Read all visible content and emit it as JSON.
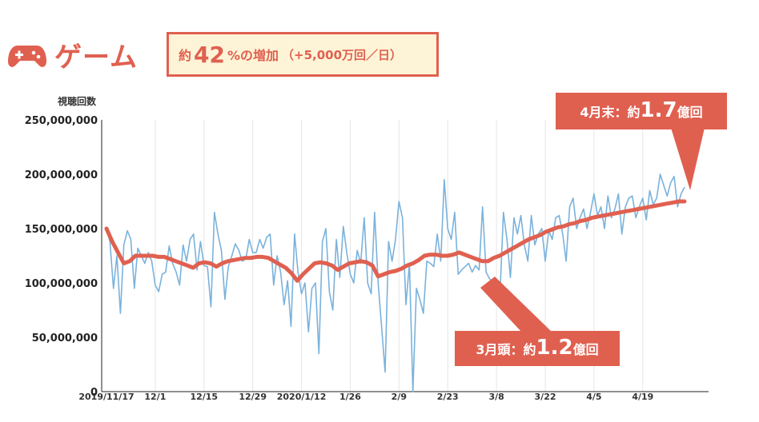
{
  "header": {
    "title": "ゲーム",
    "icon": "gamepad-icon",
    "badge": {
      "prefix": "約",
      "value": "42",
      "suffix": "%の増加",
      "note": "（+5,000万回／日）"
    }
  },
  "colors": {
    "accent": "#e06050",
    "daily_line": "#7ab2dc",
    "badge_fill": "#fdf4d7",
    "axis": "#222222",
    "grid": "#e6e6e6"
  },
  "chart_data": {
    "type": "line",
    "title": "",
    "ylabel": "視聴回数",
    "xlabel": "",
    "ylim": [
      0,
      250000000
    ],
    "yticks": [
      {
        "value": 0,
        "label": "0"
      },
      {
        "value": 50000000,
        "label": "50,000,000"
      },
      {
        "value": 100000000,
        "label": "100,000,000"
      },
      {
        "value": 150000000,
        "label": "150,000,000"
      },
      {
        "value": 200000000,
        "label": "200,000,000"
      },
      {
        "value": 250000000,
        "label": "250,000,000"
      }
    ],
    "xticks": [
      "2019/11/17",
      "12/1",
      "12/15",
      "12/29",
      "2020/1/12",
      "1/26",
      "2/9",
      "2/23",
      "3/8",
      "3/22",
      "4/5",
      "4/19"
    ],
    "x_start": "2019/11/17",
    "x_end": "2020/4/28",
    "grid": "vertical",
    "series": [
      {
        "style": "daily",
        "values": [
          150,
          138,
          95,
          125,
          72,
          135,
          148,
          140,
          95,
          132,
          125,
          118,
          128,
          120,
          98,
          92,
          108,
          110,
          134,
          118,
          110,
          98,
          135,
          120,
          140,
          145,
          112,
          138,
          116,
          115,
          78,
          165,
          145,
          130,
          85,
          115,
          125,
          136,
          130,
          120,
          122,
          140,
          128,
          128,
          140,
          132,
          142,
          145,
          98,
          125,
          110,
          80,
          102,
          60,
          145,
          110,
          90,
          100,
          55,
          95,
          100,
          35,
          138,
          150,
          92,
          75,
          140,
          105,
          152,
          128,
          108,
          100,
          130,
          118,
          160,
          100,
          90,
          165,
          100,
          60,
          18,
          138,
          120,
          140,
          175,
          160,
          80,
          118,
          0,
          95,
          85,
          72,
          120,
          118,
          115,
          145,
          120,
          195,
          150,
          140,
          165,
          108,
          112,
          115,
          118,
          110,
          116,
          112,
          170,
          110,
          104,
          100,
          96,
          90,
          165,
          140,
          105,
          160,
          145,
          162,
          135,
          120,
          162,
          135,
          145,
          150,
          120,
          148,
          140,
          160,
          162,
          145,
          120,
          170,
          178,
          150,
          160,
          168,
          150,
          165,
          182,
          162,
          170,
          150,
          180,
          160,
          168,
          182,
          145,
          170,
          178,
          180,
          160,
          170,
          178,
          158,
          185,
          172,
          178,
          200,
          190,
          180,
          192,
          198,
          170,
          182,
          188
        ]
      },
      {
        "style": "trend",
        "values": [
          150,
          138,
          128,
          118,
          120,
          125,
          125,
          125,
          125,
          124,
          124,
          122,
          120,
          118,
          116,
          114,
          118,
          119,
          118,
          115,
          118,
          120,
          121,
          122,
          123,
          123,
          124,
          124,
          123,
          120,
          117,
          114,
          109,
          102,
          108,
          113,
          118,
          119,
          118,
          116,
          112,
          115,
          118,
          119,
          120,
          119,
          116,
          106,
          108,
          110,
          111,
          113,
          116,
          118,
          121,
          125,
          126,
          126,
          125,
          125,
          126,
          128,
          126,
          124,
          122,
          120,
          120,
          123,
          125,
          128,
          131,
          134,
          137,
          140,
          142,
          144,
          147,
          149,
          151,
          152,
          154,
          155,
          157,
          158,
          160,
          161,
          162,
          163,
          164,
          165,
          166,
          167,
          168,
          169,
          170,
          171,
          172,
          173,
          174,
          175,
          175
        ]
      }
    ],
    "annotations": [
      {
        "name": "end-of-april-callout",
        "prefix": "4月末：約",
        "value": "1.7",
        "suffix": "億回",
        "target_value": 175000000
      },
      {
        "name": "early-march-callout",
        "prefix": "3月頭：約",
        "value": "1.2",
        "suffix": "億回",
        "target_value": 120000000
      }
    ]
  }
}
